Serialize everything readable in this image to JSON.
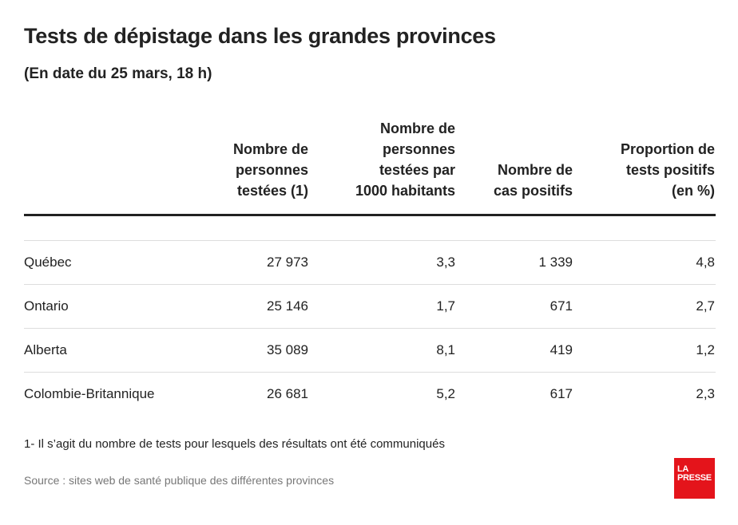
{
  "chart_data": {
    "type": "table",
    "title": "Tests de dépistage dans les grandes provinces",
    "subtitle": "(En date du 25 mars, 18 h)",
    "columns": [
      "",
      "Nombre de\npersonnes\ntestées (1)",
      "Nombre de\npersonnes\ntestées par\n1000 habitants",
      "Nombre de\ncas positifs",
      "Proportion de\ntests positifs\n(en %)"
    ],
    "rows": [
      {
        "province": "Québec",
        "tested": "27 973",
        "per_1000": "3,3",
        "positive": "1 339",
        "proportion": "4,8"
      },
      {
        "province": "Ontario",
        "tested": "25 146",
        "per_1000": "1,7",
        "positive": "671",
        "proportion": "2,7"
      },
      {
        "province": "Alberta",
        "tested": "35 089",
        "per_1000": "8,1",
        "positive": "419",
        "proportion": "1,2"
      },
      {
        "province": "Colombie-Britannique",
        "tested": "26 681",
        "per_1000": "5,2",
        "positive": "617",
        "proportion": "2,3"
      }
    ],
    "footnote": "1- Il s’agit du nombre de tests pour lesquels des résultats ont été communiqués",
    "source": "Source : sites web de santé publique des différentes provinces"
  },
  "logo": {
    "line1": "LA",
    "line2": "PRESSE",
    "color": "#e4141b"
  }
}
